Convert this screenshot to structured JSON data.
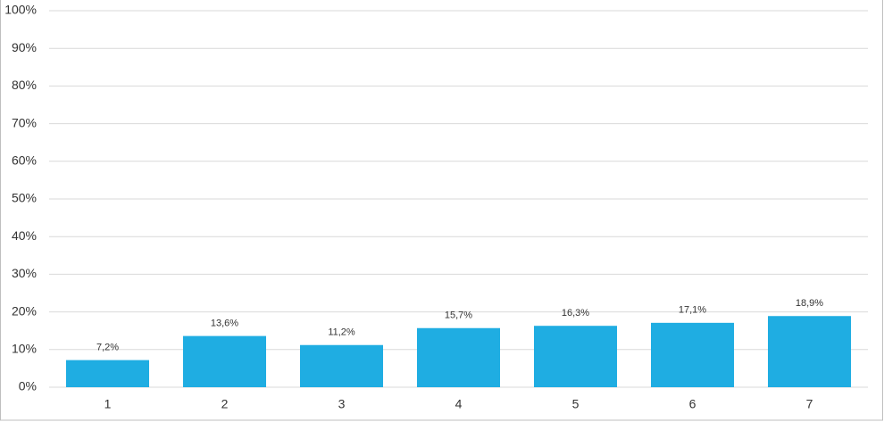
{
  "chart_data": {
    "type": "bar",
    "categories": [
      "1",
      "2",
      "3",
      "4",
      "5",
      "6",
      "7"
    ],
    "values": [
      7.2,
      13.6,
      11.2,
      15.7,
      16.3,
      17.1,
      18.9
    ],
    "value_labels": [
      "7,2%",
      "13,6%",
      "11,2%",
      "15,7%",
      "16,3%",
      "17,1%",
      "18,9%"
    ],
    "color": "#1fade2",
    "ylim": [
      0,
      100
    ],
    "yticks": [
      {
        "value": 0,
        "label": "0%"
      },
      {
        "value": 10,
        "label": "10%"
      },
      {
        "value": 20,
        "label": "20%"
      },
      {
        "value": 30,
        "label": "30%"
      },
      {
        "value": 40,
        "label": "40%"
      },
      {
        "value": 50,
        "label": "50%"
      },
      {
        "value": 60,
        "label": "60%"
      },
      {
        "value": 70,
        "label": "70%"
      },
      {
        "value": 80,
        "label": "80%"
      },
      {
        "value": 90,
        "label": "90%"
      },
      {
        "value": 100,
        "label": "100%"
      }
    ],
    "grid": true
  }
}
